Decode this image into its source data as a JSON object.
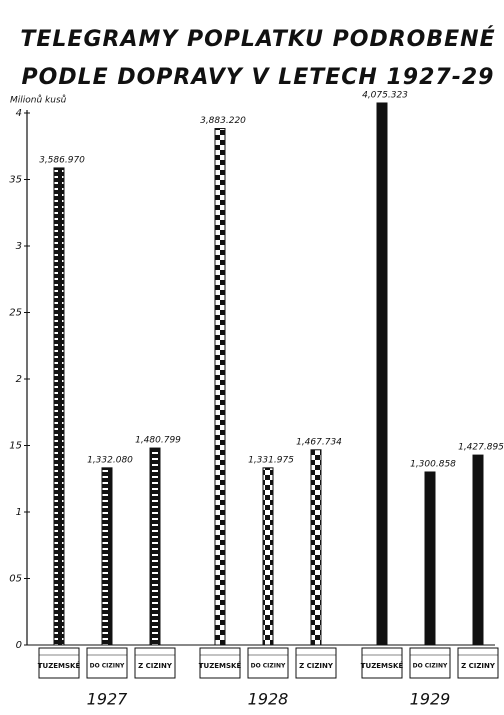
{
  "chart_data": {
    "type": "bar",
    "title": [
      "TELEGRAMY POPLATKU PODROBENÉ",
      "PODLE DOPRAVY V LETECH 1927-29"
    ],
    "ylabel": "Milionů kusů",
    "categories": [
      "1927",
      "1928",
      "1929"
    ],
    "category_patterns": [
      "stripes",
      "checker",
      "solid"
    ],
    "series": [
      {
        "name": "TUZEMSKÉ",
        "color": "#111111",
        "values": [
          3.58697,
          3.88322,
          4.075323
        ],
        "value_labels": [
          "3,586.970",
          "3,883.220",
          "4,075.323"
        ]
      },
      {
        "name": "DO CIZINY",
        "color": "#111111",
        "values": [
          1.33208,
          1.331975,
          1.300858
        ],
        "value_labels": [
          "1,332.080",
          "1,331.975",
          "1,300.858"
        ]
      },
      {
        "name": "Z CIZINY",
        "color": "#111111",
        "values": [
          1.480799,
          1.467734,
          1.427895
        ],
        "value_labels": [
          "1,480.799",
          "1,467.734",
          "1,427.895"
        ]
      }
    ],
    "ylim": [
      0,
      4
    ],
    "yticks": [
      0,
      {
        "value": 0.5,
        "label": "05"
      },
      1,
      {
        "value": 1.5,
        "label": "15"
      },
      2,
      {
        "value": 2.5,
        "label": "25"
      },
      3,
      {
        "value": 3.5,
        "label": "35"
      },
      4
    ],
    "grid": false
  }
}
